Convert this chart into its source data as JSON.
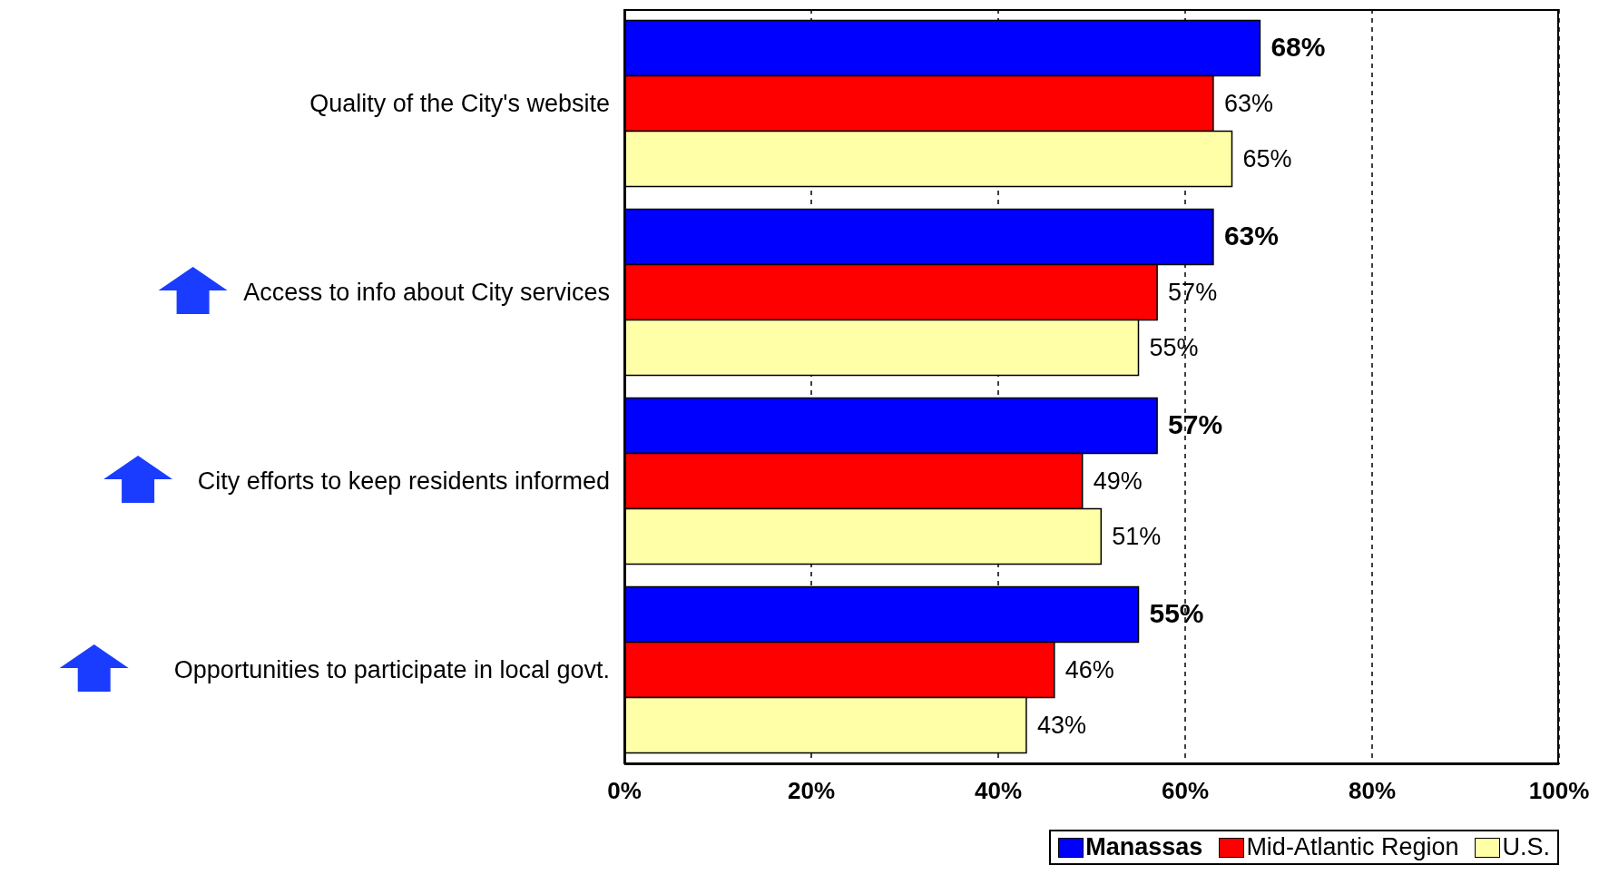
{
  "chart_data": {
    "type": "bar",
    "orientation": "horizontal",
    "categories": [
      "Quality of the City's website",
      "Access to info about City services",
      "City efforts to keep residents informed",
      "Opportunities to participate in local govt."
    ],
    "series": [
      {
        "name": "Manassas",
        "color": "#0000ff",
        "values": [
          68,
          63,
          57,
          55
        ],
        "value_labels": [
          "68%",
          "63%",
          "57%",
          "55%"
        ]
      },
      {
        "name": "Mid-Atlantic Region",
        "color": "#ff0000",
        "values": [
          63,
          57,
          49,
          46
        ],
        "value_labels": [
          "63%",
          "57%",
          "49%",
          "46%"
        ]
      },
      {
        "name": "U.S.",
        "color": "#ffffa8",
        "values": [
          65,
          55,
          51,
          43
        ],
        "value_labels": [
          "65%",
          "55%",
          "51%",
          "43%"
        ]
      }
    ],
    "xlim": [
      0,
      100
    ],
    "xticks": [
      {
        "value": 0,
        "label": "0%"
      },
      {
        "value": 20,
        "label": "20%"
      },
      {
        "value": 40,
        "label": "40%"
      },
      {
        "value": 60,
        "label": "60%"
      },
      {
        "value": 80,
        "label": "80%"
      },
      {
        "value": 100,
        "label": "100%"
      }
    ],
    "grid": "x",
    "legend": "bottom right"
  }
}
